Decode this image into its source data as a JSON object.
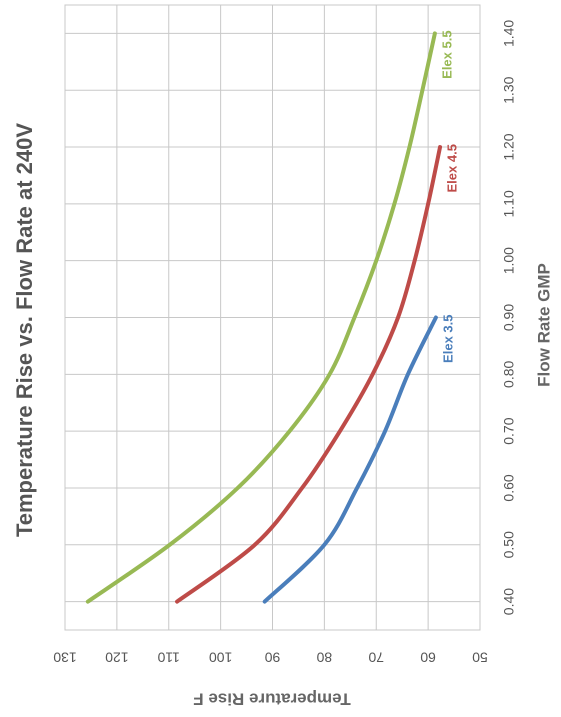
{
  "chart_data": {
    "type": "line",
    "title": "Temperature Rise vs. Flow Rate at 240V",
    "xlabel": "Flow Rate GMP",
    "ylabel": "Temperature Rise  F",
    "x": [
      0.4,
      0.5,
      0.6,
      0.7,
      0.8,
      0.9,
      1.0,
      1.1,
      1.2,
      1.3,
      1.4
    ],
    "series": [
      {
        "name": "Elex 3.5",
        "color": "#4a7ebb",
        "values": [
          91.5,
          80,
          73.7,
          68.3,
          63.9,
          58.5,
          null,
          null,
          null,
          null,
          null
        ]
      },
      {
        "name": "Elex 4.5",
        "color": "#be4b48",
        "values": [
          108.4,
          93.4,
          84.3,
          77,
          70.7,
          65.8,
          62.6,
          60,
          57.7,
          null,
          null
        ]
      },
      {
        "name": "Elex 5.5",
        "color": "#98b954",
        "values": [
          125.6,
          109.8,
          96.7,
          86.7,
          79,
          74.2,
          70,
          66.5,
          63.6,
          61.1,
          58.7
        ]
      }
    ],
    "xlim": [
      0.35,
      1.45
    ],
    "xticks": [
      {
        "value": 0.4,
        "label": "0.40"
      },
      {
        "value": 0.5,
        "label": "0.50"
      },
      {
        "value": 0.6,
        "label": "0.60"
      },
      {
        "value": 0.7,
        "label": "0.70"
      },
      {
        "value": 0.8,
        "label": "0.80"
      },
      {
        "value": 0.9,
        "label": "0.90"
      },
      {
        "value": 1.0,
        "label": "1.00"
      },
      {
        "value": 1.1,
        "label": "1.10"
      },
      {
        "value": 1.2,
        "label": "1.20"
      },
      {
        "value": 1.3,
        "label": "1.30"
      },
      {
        "value": 1.4,
        "label": "1.40"
      }
    ],
    "ylim": [
      50,
      130
    ],
    "yticks": [
      50,
      60,
      70,
      80,
      90,
      100,
      110,
      120,
      130
    ],
    "grid": true
  }
}
